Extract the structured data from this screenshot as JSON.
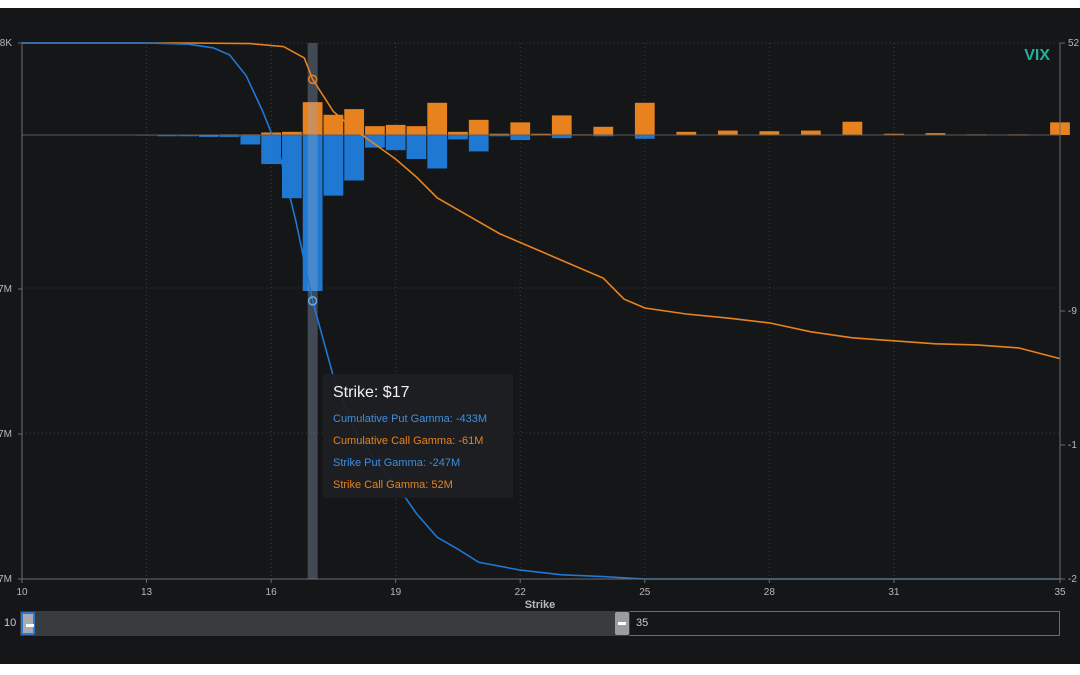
{
  "ticker": "VIX",
  "colors": {
    "background": "#151618",
    "put": "#1f78d1",
    "call": "#e8821e",
    "ticker": "#1fb39b",
    "grid": "#3a3c40",
    "axis_text": "#b8b8b8"
  },
  "left_axis_labels": [
    "8K",
    "7M",
    "7M",
    "7M"
  ],
  "right_axis_labels": [
    "52",
    "-9",
    "-1",
    "-2"
  ],
  "x_axis": {
    "label": "Strike",
    "ticks": [
      10,
      13,
      16,
      19,
      22,
      25,
      28,
      31,
      35
    ],
    "range": [
      10,
      35
    ]
  },
  "tooltip": {
    "title": "Strike: $17",
    "rows": [
      {
        "text": "Cumulative Put Gamma: -433M",
        "series": "put"
      },
      {
        "text": "Cumulative Call Gamma: -61M",
        "series": "call"
      },
      {
        "text": "Strike Put Gamma: -247M",
        "series": "put"
      },
      {
        "text": "Strike Call Gamma: 52M",
        "series": "call"
      }
    ]
  },
  "range_slider": {
    "min_label": "10",
    "max_label": "35",
    "selected": [
      10,
      35
    ]
  },
  "chart_data": {
    "type": "bar",
    "title": "",
    "xlabel": "Strike",
    "ylabel": "",
    "xlim": [
      10,
      35
    ],
    "ylim_bars": [
      -300,
      60
    ],
    "hovered_strike": 17,
    "grid": true,
    "legend": "none",
    "strike_call_gamma": [
      {
        "x": 14.5,
        "v": 0.5
      },
      {
        "x": 15,
        "v": 1
      },
      {
        "x": 15.5,
        "v": 1
      },
      {
        "x": 16,
        "v": 4
      },
      {
        "x": 16.5,
        "v": 5
      },
      {
        "x": 17,
        "v": 52
      },
      {
        "x": 17.5,
        "v": 32
      },
      {
        "x": 18,
        "v": 41
      },
      {
        "x": 18.5,
        "v": 14
      },
      {
        "x": 19,
        "v": 16
      },
      {
        "x": 19.5,
        "v": 14
      },
      {
        "x": 20,
        "v": 51
      },
      {
        "x": 20.5,
        "v": 5
      },
      {
        "x": 21,
        "v": 24
      },
      {
        "x": 21.5,
        "v": 2
      },
      {
        "x": 22,
        "v": 20
      },
      {
        "x": 22.5,
        "v": 2
      },
      {
        "x": 23,
        "v": 31
      },
      {
        "x": 23.5,
        "v": 1
      },
      {
        "x": 24,
        "v": 13
      },
      {
        "x": 24.5,
        "v": 0
      },
      {
        "x": 25,
        "v": 51
      },
      {
        "x": 26,
        "v": 5
      },
      {
        "x": 27,
        "v": 7
      },
      {
        "x": 28,
        "v": 6
      },
      {
        "x": 29,
        "v": 7
      },
      {
        "x": 30,
        "v": 21
      },
      {
        "x": 31,
        "v": 2
      },
      {
        "x": 32,
        "v": 3
      },
      {
        "x": 33,
        "v": 1
      },
      {
        "x": 34,
        "v": 1
      },
      {
        "x": 35,
        "v": 20
      }
    ],
    "strike_put_gamma": [
      {
        "x": 13,
        "v": -1
      },
      {
        "x": 13.5,
        "v": -2
      },
      {
        "x": 14,
        "v": -2
      },
      {
        "x": 14.5,
        "v": -3
      },
      {
        "x": 15,
        "v": -3
      },
      {
        "x": 15.5,
        "v": -15
      },
      {
        "x": 16,
        "v": -46
      },
      {
        "x": 16.5,
        "v": -100
      },
      {
        "x": 17,
        "v": -247
      },
      {
        "x": 17.5,
        "v": -96
      },
      {
        "x": 18,
        "v": -72
      },
      {
        "x": 18.5,
        "v": -20
      },
      {
        "x": 19,
        "v": -24
      },
      {
        "x": 19.5,
        "v": -38
      },
      {
        "x": 20,
        "v": -53
      },
      {
        "x": 20.5,
        "v": -7
      },
      {
        "x": 21,
        "v": -26
      },
      {
        "x": 21.5,
        "v": -2
      },
      {
        "x": 22,
        "v": -8
      },
      {
        "x": 22.5,
        "v": -1
      },
      {
        "x": 23,
        "v": -5
      },
      {
        "x": 24,
        "v": -2
      },
      {
        "x": 25,
        "v": -6
      }
    ],
    "cumulative_put_gamma": [
      {
        "x": 10,
        "v": 0
      },
      {
        "x": 13,
        "v": 0
      },
      {
        "x": 14,
        "v": -2
      },
      {
        "x": 14.6,
        "v": -8
      },
      {
        "x": 15,
        "v": -20
      },
      {
        "x": 15.4,
        "v": -55
      },
      {
        "x": 15.8,
        "v": -115
      },
      {
        "x": 16.2,
        "v": -185
      },
      {
        "x": 16.6,
        "v": -300
      },
      {
        "x": 17,
        "v": -433
      },
      {
        "x": 17.5,
        "v": -560
      },
      {
        "x": 18,
        "v": -650
      },
      {
        "x": 18.5,
        "v": -700
      },
      {
        "x": 19,
        "v": -740
      },
      {
        "x": 19.5,
        "v": -790
      },
      {
        "x": 20,
        "v": -830
      },
      {
        "x": 20.5,
        "v": -850
      },
      {
        "x": 21,
        "v": -872
      },
      {
        "x": 22,
        "v": -885
      },
      {
        "x": 23,
        "v": -893
      },
      {
        "x": 24,
        "v": -896
      },
      {
        "x": 25,
        "v": -900
      },
      {
        "x": 28,
        "v": -900
      },
      {
        "x": 31,
        "v": -900
      },
      {
        "x": 35,
        "v": -900
      }
    ],
    "cumulative_call_gamma": [
      {
        "x": 10,
        "v": 0
      },
      {
        "x": 14,
        "v": 0
      },
      {
        "x": 15.5,
        "v": -1
      },
      {
        "x": 16.3,
        "v": -6
      },
      {
        "x": 16.8,
        "v": -25
      },
      {
        "x": 17,
        "v": -61
      },
      {
        "x": 17.5,
        "v": -115
      },
      {
        "x": 18,
        "v": -145
      },
      {
        "x": 18.5,
        "v": -170
      },
      {
        "x": 19,
        "v": -195
      },
      {
        "x": 19.5,
        "v": -225
      },
      {
        "x": 20,
        "v": -260
      },
      {
        "x": 20.5,
        "v": -280
      },
      {
        "x": 21,
        "v": -300
      },
      {
        "x": 21.5,
        "v": -320
      },
      {
        "x": 22,
        "v": -335
      },
      {
        "x": 22.5,
        "v": -350
      },
      {
        "x": 23,
        "v": -365
      },
      {
        "x": 24,
        "v": -395
      },
      {
        "x": 24.5,
        "v": -430
      },
      {
        "x": 25,
        "v": -445
      },
      {
        "x": 26,
        "v": -455
      },
      {
        "x": 27,
        "v": -462
      },
      {
        "x": 28,
        "v": -470
      },
      {
        "x": 29,
        "v": -485
      },
      {
        "x": 30,
        "v": -495
      },
      {
        "x": 31,
        "v": -500
      },
      {
        "x": 32,
        "v": -505
      },
      {
        "x": 33,
        "v": -507
      },
      {
        "x": 34,
        "v": -512
      },
      {
        "x": 35,
        "v": -530
      }
    ]
  }
}
